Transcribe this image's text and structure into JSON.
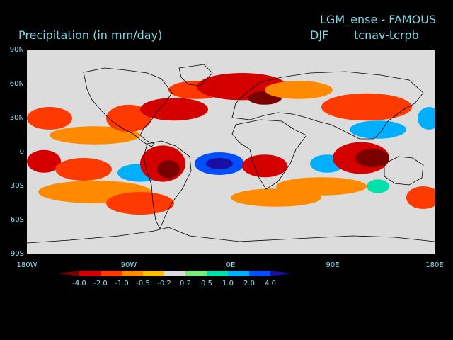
{
  "header": {
    "model": "LGM_ense - FAMOUS",
    "variable": "Precipitation (in mm/day)",
    "season": "DJF",
    "experiment": "tcnav-tcrpb"
  },
  "axes": {
    "lat_labels": [
      "90N",
      "60N",
      "30N",
      "0",
      "30S",
      "60S",
      "90S"
    ],
    "lon_labels": [
      "180W",
      "90W",
      "0E",
      "90E",
      "180E"
    ]
  },
  "colorbar": {
    "labels": [
      "-4.0",
      "-2.0",
      "-1.0",
      "-0.5",
      "-0.2",
      "0.2",
      "0.5",
      "1.0",
      "2.0",
      "4.0"
    ],
    "colors": [
      "#7a0000",
      "#d40000",
      "#ff3a00",
      "#ff8a00",
      "#ffbf00",
      "#dcdcdc",
      "#78ee78",
      "#00e0a8",
      "#00b0ff",
      "#0050ff",
      "#1a10a0"
    ]
  },
  "map": {
    "background": "#dcdcdc",
    "coastline_color": "#000000",
    "anomalies": [
      {
        "lon": -160,
        "lat": 30,
        "rx": 20,
        "ry": 10,
        "level": -1.0
      },
      {
        "lon": -120,
        "lat": 15,
        "rx": 40,
        "ry": 8,
        "level": -0.5
      },
      {
        "lon": -90,
        "lat": 30,
        "rx": 20,
        "ry": 12,
        "level": -1.0
      },
      {
        "lon": -50,
        "lat": 38,
        "rx": 30,
        "ry": 10,
        "level": -2.0
      },
      {
        "lon": -30,
        "lat": 55,
        "rx": 25,
        "ry": 8,
        "level": -1.0
      },
      {
        "lon": 10,
        "lat": 58,
        "rx": 40,
        "ry": 12,
        "level": -2.0
      },
      {
        "lon": 30,
        "lat": 48,
        "rx": 15,
        "ry": 6,
        "level": -4.0
      },
      {
        "lon": 60,
        "lat": 55,
        "rx": 30,
        "ry": 8,
        "level": -0.5
      },
      {
        "lon": 120,
        "lat": 40,
        "rx": 40,
        "ry": 12,
        "level": -1.0
      },
      {
        "lon": 130,
        "lat": 20,
        "rx": 25,
        "ry": 8,
        "level": 1.0
      },
      {
        "lon": 175,
        "lat": 30,
        "rx": 10,
        "ry": 10,
        "level": 1.0
      },
      {
        "lon": -165,
        "lat": -8,
        "rx": 15,
        "ry": 10,
        "level": -2.0
      },
      {
        "lon": -130,
        "lat": -15,
        "rx": 25,
        "ry": 10,
        "level": -1.0
      },
      {
        "lon": -80,
        "lat": -18,
        "rx": 20,
        "ry": 8,
        "level": 1.0
      },
      {
        "lon": -60,
        "lat": -10,
        "rx": 20,
        "ry": 16,
        "level": -2.0
      },
      {
        "lon": -55,
        "lat": -15,
        "rx": 10,
        "ry": 8,
        "level": -4.0
      },
      {
        "lon": -10,
        "lat": -10,
        "rx": 22,
        "ry": 10,
        "level": 2.0
      },
      {
        "lon": -10,
        "lat": -10,
        "rx": 12,
        "ry": 5,
        "level": 4.0
      },
      {
        "lon": 30,
        "lat": -12,
        "rx": 20,
        "ry": 10,
        "level": -2.0
      },
      {
        "lon": 85,
        "lat": -10,
        "rx": 15,
        "ry": 8,
        "level": 1.0
      },
      {
        "lon": 115,
        "lat": -5,
        "rx": 25,
        "ry": 14,
        "level": -2.0
      },
      {
        "lon": 125,
        "lat": -5,
        "rx": 15,
        "ry": 8,
        "level": -4.0
      },
      {
        "lon": 80,
        "lat": -30,
        "rx": 40,
        "ry": 8,
        "level": -0.5
      },
      {
        "lon": -120,
        "lat": -35,
        "rx": 50,
        "ry": 10,
        "level": -0.5
      },
      {
        "lon": -80,
        "lat": -45,
        "rx": 30,
        "ry": 10,
        "level": -1.0
      },
      {
        "lon": 40,
        "lat": -40,
        "rx": 40,
        "ry": 8,
        "level": -0.5
      },
      {
        "lon": 130,
        "lat": -30,
        "rx": 10,
        "ry": 6,
        "level": 0.5
      },
      {
        "lon": 170,
        "lat": -40,
        "rx": 15,
        "ry": 10,
        "level": -1.0
      }
    ]
  }
}
